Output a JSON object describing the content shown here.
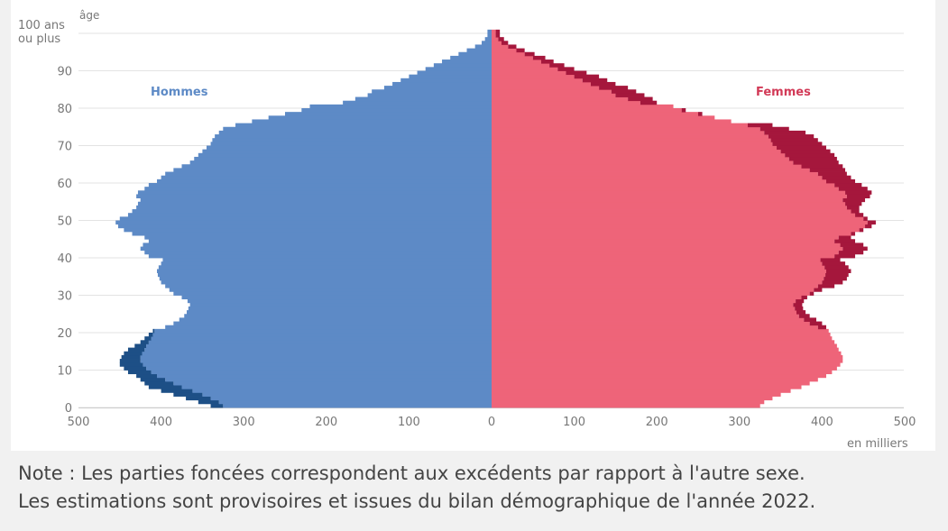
{
  "chart_data": {
    "type": "bar",
    "orientation": "horizontal",
    "subtype": "population-pyramid",
    "title": "",
    "ylabel": "âge",
    "xlabel": "en milliers",
    "top_age_label": [
      "100 ans",
      "ou plus"
    ],
    "age_range": [
      0,
      100
    ],
    "x_range": [
      -500,
      500
    ],
    "y_ticks": [
      0,
      10,
      20,
      30,
      40,
      50,
      60,
      70,
      80,
      90
    ],
    "x_ticks": [
      {
        "value": -500,
        "label": "500"
      },
      {
        "value": -400,
        "label": "400"
      },
      {
        "value": -300,
        "label": "300"
      },
      {
        "value": -200,
        "label": "200"
      },
      {
        "value": -100,
        "label": "100"
      },
      {
        "value": 0,
        "label": "0"
      },
      {
        "value": 100,
        "label": "100"
      },
      {
        "value": 200,
        "label": "200"
      },
      {
        "value": 300,
        "label": "300"
      },
      {
        "value": 400,
        "label": "400"
      },
      {
        "value": 500,
        "label": "500"
      }
    ],
    "grid": "horizontal",
    "series": [
      {
        "name": "Hommes",
        "color": "#5d8ac6",
        "excess_color": "#1d4f86",
        "values": [
          340,
          355,
          370,
          385,
          400,
          415,
          420,
          425,
          430,
          440,
          445,
          450,
          450,
          448,
          445,
          440,
          432,
          425,
          420,
          415,
          410,
          395,
          385,
          378,
          372,
          369,
          367,
          365,
          368,
          375,
          385,
          390,
          395,
          400,
          402,
          404,
          405,
          403,
          400,
          398,
          415,
          420,
          425,
          422,
          415,
          420,
          435,
          445,
          452,
          455,
          450,
          440,
          435,
          430,
          428,
          425,
          430,
          428,
          420,
          415,
          405,
          400,
          395,
          385,
          375,
          365,
          360,
          355,
          350,
          345,
          340,
          338,
          335,
          330,
          325,
          310,
          290,
          270,
          250,
          230,
          220,
          180,
          165,
          150,
          145,
          130,
          120,
          110,
          100,
          90,
          80,
          70,
          60,
          50,
          40,
          30,
          20,
          12,
          8,
          5,
          5
        ]
      },
      {
        "name": "Femmes",
        "color": "#ee6479",
        "excess_color": "#a5173c",
        "values": [
          325,
          330,
          340,
          350,
          362,
          375,
          385,
          395,
          405,
          412,
          418,
          422,
          425,
          425,
          423,
          420,
          418,
          415,
          412,
          410,
          408,
          405,
          400,
          393,
          385,
          380,
          377,
          376,
          378,
          382,
          390,
          400,
          415,
          425,
          430,
          432,
          435,
          432,
          428,
          422,
          440,
          450,
          455,
          450,
          440,
          435,
          440,
          450,
          460,
          465,
          455,
          450,
          445,
          445,
          448,
          452,
          458,
          460,
          455,
          448,
          440,
          435,
          430,
          428,
          425,
          420,
          418,
          415,
          410,
          405,
          400,
          395,
          390,
          380,
          360,
          340,
          290,
          270,
          255,
          235,
          220,
          200,
          195,
          185,
          175,
          165,
          150,
          140,
          130,
          115,
          100,
          88,
          75,
          65,
          52,
          40,
          30,
          20,
          15,
          10,
          10
        ]
      }
    ]
  },
  "labels": {
    "top_age_line1": "100 ans",
    "top_age_line2": "ou plus",
    "age_axis_title": "âge",
    "men": "Hommes",
    "women": "Femmes",
    "unit": "en milliers"
  },
  "note": {
    "line1": "Note : Les parties foncées correspondent aux excédents par rapport à l'autre sexe.",
    "line2": "Les estimations sont provisoires et issues du bilan démographique de l'année 2022."
  },
  "colors": {
    "men": "#5d8ac6",
    "men_excess": "#1d4f86",
    "women": "#ee6479",
    "women_excess": "#a5173c",
    "grid": "#e3e3e3",
    "axis_text": "#777777"
  }
}
